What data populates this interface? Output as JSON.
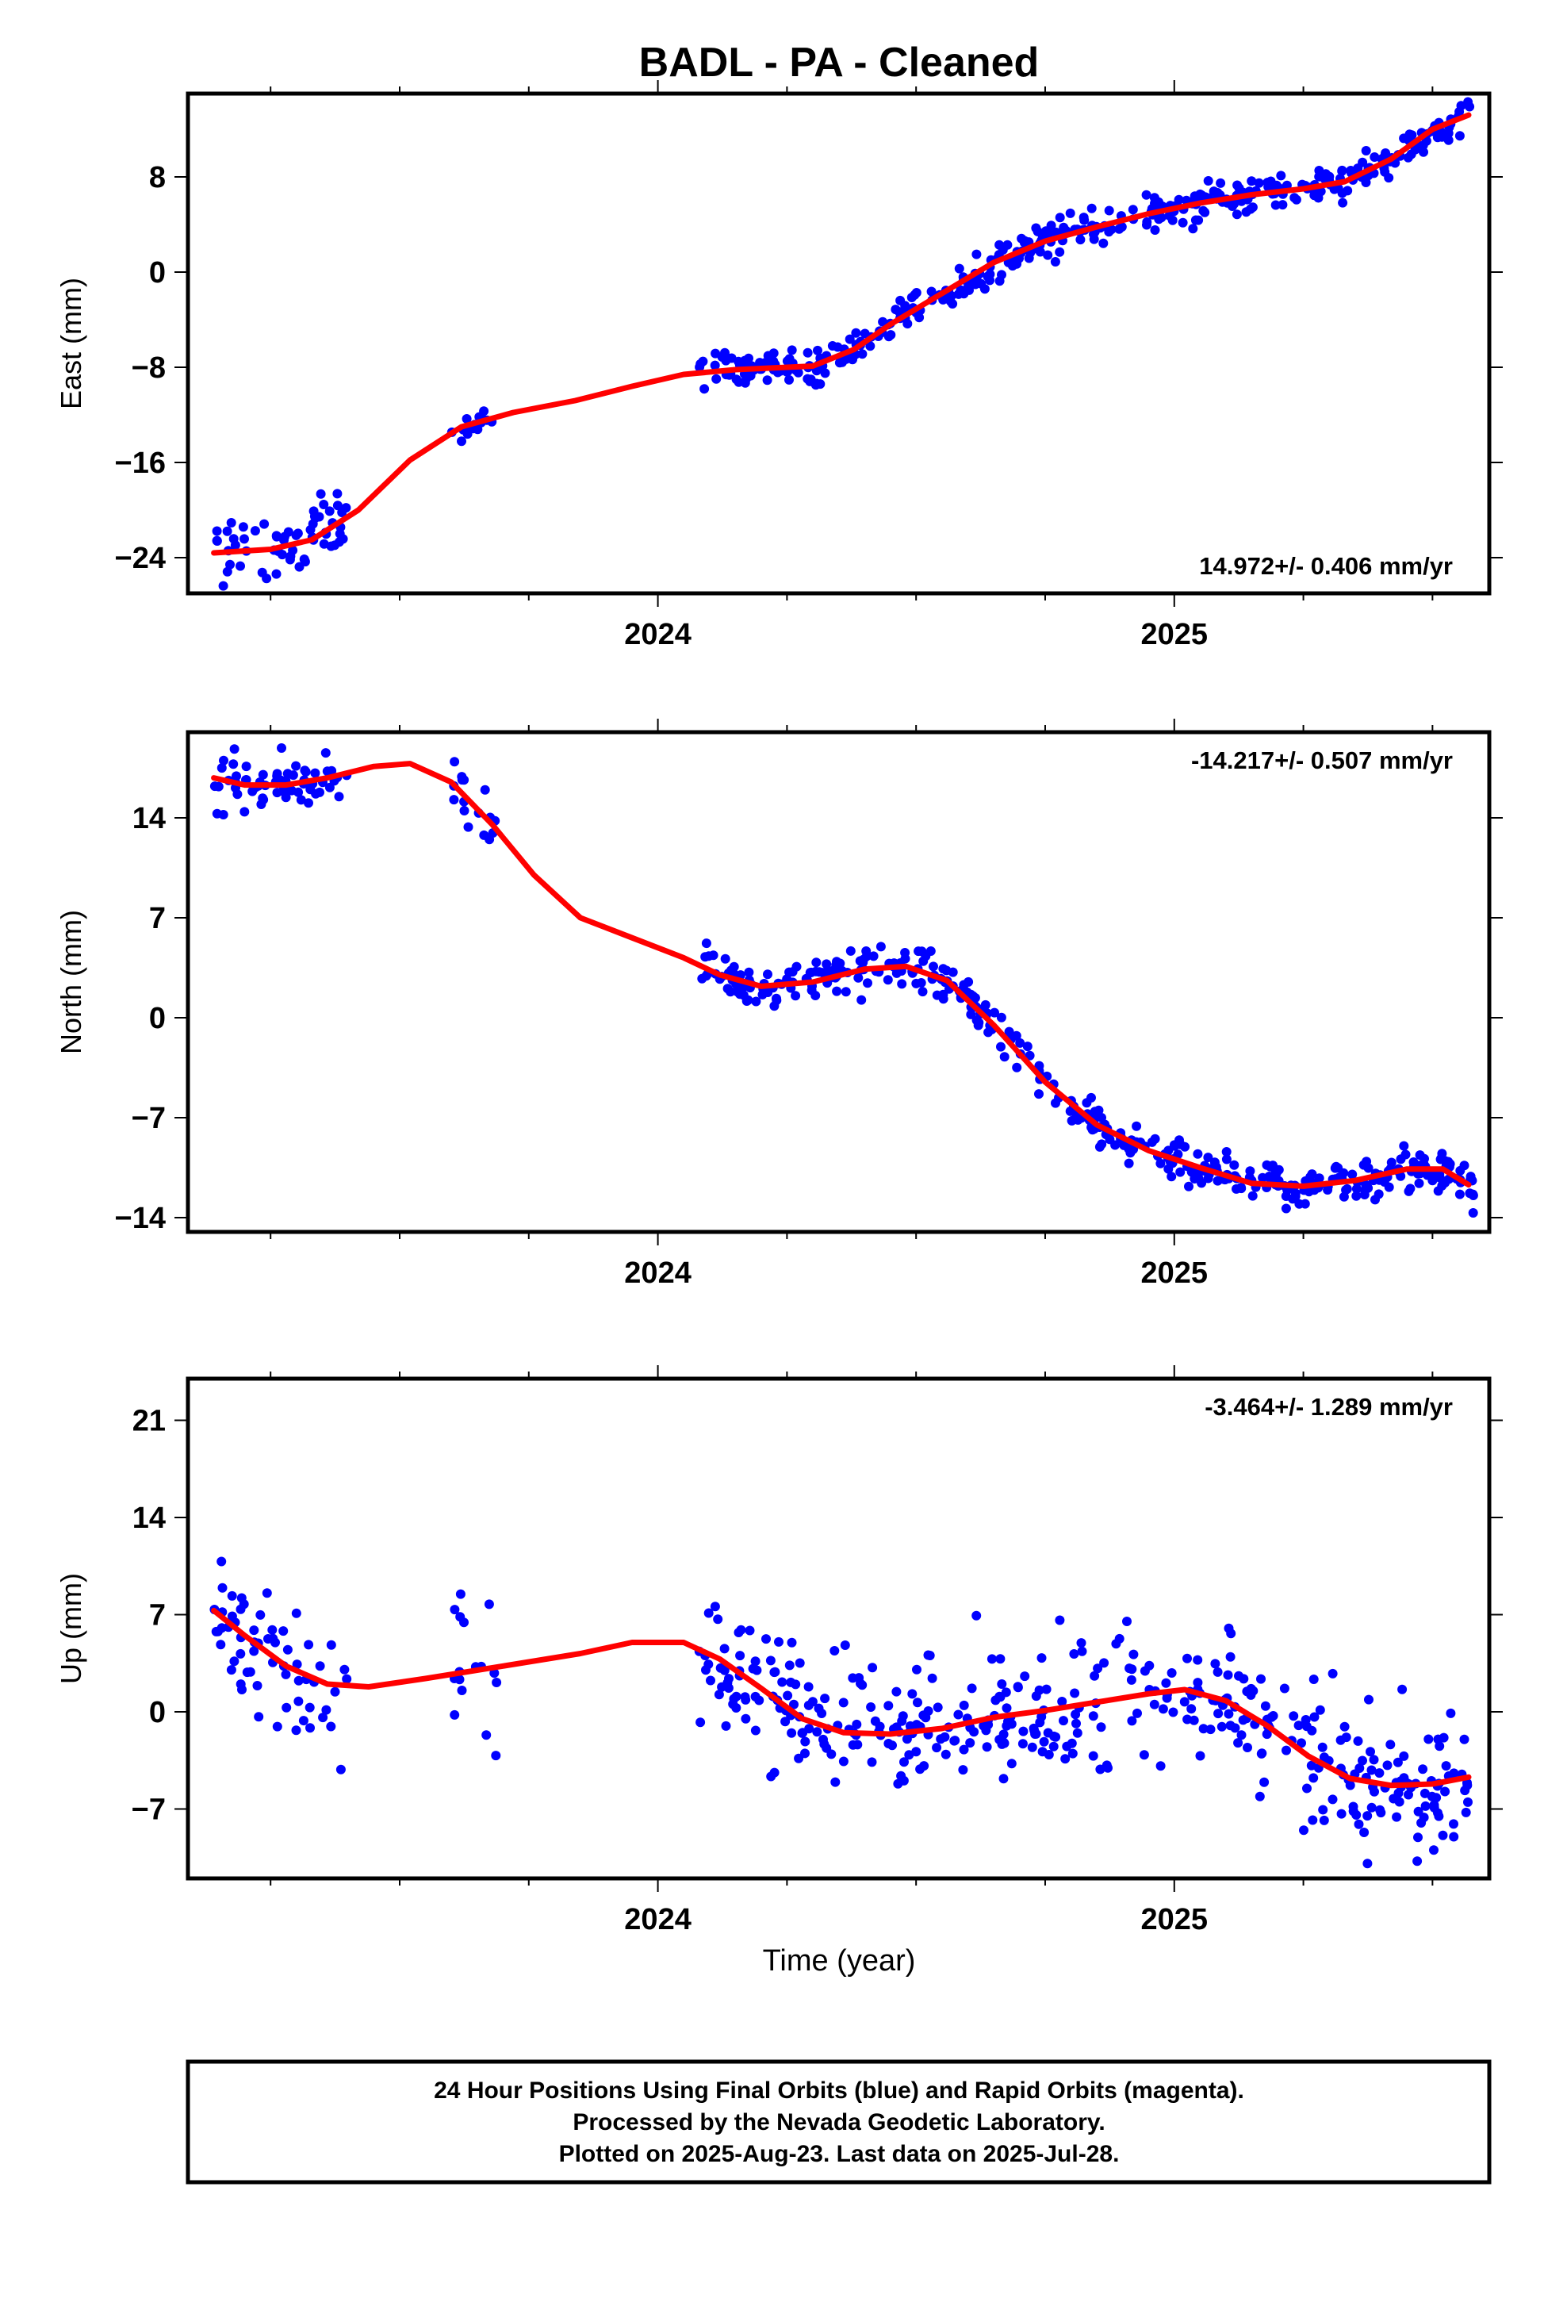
{
  "title": "BADL  - PA - Cleaned",
  "xlabel": "Time (year)",
  "footer": [
    "24 Hour Positions Using Final Orbits (blue) and Rapid Orbits (magenta).",
    "Processed by the Nevada Geodetic Laboratory.",
    "Plotted on 2025-Aug-23. Last data on 2025-Jul-28."
  ],
  "colors": {
    "points": "#0000ff",
    "fit": "#ff0000",
    "frame": "#000000"
  },
  "chart_data": [
    {
      "type": "scatter",
      "ylabel": "East (mm)",
      "rate": "14.972+/- 0.406 mm/yr",
      "xlim": [
        2023.09,
        2025.61
      ],
      "ylim": [
        -27,
        15
      ],
      "yticks": [
        -24,
        -16,
        -8,
        0,
        8
      ],
      "yticklabels": [
        "−24",
        "−16",
        "−8",
        "0",
        "8"
      ],
      "xticks": [
        2024,
        2025
      ],
      "xticklabels": [
        "2024",
        "2025"
      ],
      "grid": false,
      "fit": [
        [
          2023.14,
          -23.6
        ],
        [
          2023.25,
          -23.3
        ],
        [
          2023.33,
          -22.5
        ],
        [
          2023.42,
          -20
        ],
        [
          2023.52,
          -15.8
        ],
        [
          2023.62,
          -13
        ],
        [
          2023.72,
          -11.8
        ],
        [
          2023.84,
          -10.8
        ],
        [
          2023.95,
          -9.6
        ],
        [
          2024.05,
          -8.6
        ],
        [
          2024.15,
          -8.2
        ],
        [
          2024.3,
          -7.9
        ],
        [
          2024.38,
          -6.5
        ],
        [
          2024.45,
          -4.4
        ],
        [
          2024.55,
          -1.8
        ],
        [
          2024.65,
          0.8
        ],
        [
          2024.75,
          2.6
        ],
        [
          2024.85,
          3.8
        ],
        [
          2024.95,
          4.9
        ],
        [
          2025.05,
          5.8
        ],
        [
          2025.15,
          6.5
        ],
        [
          2025.25,
          7.0
        ],
        [
          2025.33,
          7.6
        ],
        [
          2025.42,
          9.5
        ],
        [
          2025.5,
          12
        ],
        [
          2025.57,
          13.2
        ]
      ],
      "segments": [
        {
          "start": 2023.14,
          "end": 2023.4,
          "scatter": 1.7,
          "count": 62
        },
        {
          "start": 2023.6,
          "end": 2023.69,
          "scatter": 1.1,
          "count": 16
        },
        {
          "start": 2024.08,
          "end": 2025.58,
          "scatter": 1.1,
          "count": 420
        }
      ]
    },
    {
      "type": "scatter",
      "ylabel": "North (mm)",
      "rate": "-14.217+/- 0.507 mm/yr",
      "xlim": [
        2023.09,
        2025.61
      ],
      "ylim": [
        -15,
        20
      ],
      "yticks": [
        -14,
        -7,
        0,
        7,
        14
      ],
      "yticklabels": [
        "−14",
        "−7",
        "0",
        "7",
        "14"
      ],
      "xticks": [
        2024,
        2025
      ],
      "xticklabels": [
        "2024",
        "2025"
      ],
      "grid": false,
      "fit": [
        [
          2023.14,
          16.8
        ],
        [
          2023.2,
          16.3
        ],
        [
          2023.28,
          16.3
        ],
        [
          2023.36,
          16.8
        ],
        [
          2023.45,
          17.6
        ],
        [
          2023.52,
          17.8
        ],
        [
          2023.6,
          16.5
        ],
        [
          2023.68,
          13.5
        ],
        [
          2023.76,
          10
        ],
        [
          2023.85,
          7
        ],
        [
          2023.95,
          5.6
        ],
        [
          2024.05,
          4.2
        ],
        [
          2024.12,
          3
        ],
        [
          2024.2,
          2.2
        ],
        [
          2024.3,
          2.5
        ],
        [
          2024.4,
          3.4
        ],
        [
          2024.48,
          3.6
        ],
        [
          2024.56,
          2.6
        ],
        [
          2024.65,
          -0.5
        ],
        [
          2024.75,
          -4.5
        ],
        [
          2024.85,
          -7.5
        ],
        [
          2024.95,
          -9.3
        ],
        [
          2025.05,
          -10.5
        ],
        [
          2025.15,
          -11.6
        ],
        [
          2025.25,
          -11.8
        ],
        [
          2025.35,
          -11.4
        ],
        [
          2025.45,
          -10.6
        ],
        [
          2025.52,
          -10.6
        ],
        [
          2025.57,
          -11.7
        ]
      ],
      "segments": [
        {
          "start": 2023.14,
          "end": 2023.4,
          "scatter": 1.3,
          "count": 62
        },
        {
          "start": 2023.6,
          "end": 2023.69,
          "scatter": 1.4,
          "count": 16
        },
        {
          "start": 2024.08,
          "end": 2025.58,
          "scatter": 1.1,
          "count": 420
        }
      ]
    },
    {
      "type": "scatter",
      "ylabel": "Up (mm)",
      "rate": "-3.464+/- 1.289 mm/yr",
      "xlim": [
        2023.09,
        2025.61
      ],
      "ylim": [
        -12,
        24
      ],
      "yticks": [
        -7,
        0,
        7,
        14,
        21
      ],
      "yticklabels": [
        "−7",
        "0",
        "7",
        "14",
        "21"
      ],
      "xticks": [
        2024,
        2025
      ],
      "xticklabels": [
        "2024",
        "2025"
      ],
      "grid": false,
      "fit": [
        [
          2023.14,
          7.3
        ],
        [
          2023.2,
          5.5
        ],
        [
          2023.28,
          3.3
        ],
        [
          2023.36,
          2
        ],
        [
          2023.44,
          1.8
        ],
        [
          2023.55,
          2.4
        ],
        [
          2023.7,
          3.3
        ],
        [
          2023.85,
          4.2
        ],
        [
          2023.95,
          5
        ],
        [
          2024.05,
          5
        ],
        [
          2024.12,
          3.8
        ],
        [
          2024.2,
          1.7
        ],
        [
          2024.28,
          -0.5
        ],
        [
          2024.36,
          -1.5
        ],
        [
          2024.45,
          -1.6
        ],
        [
          2024.55,
          -1.2
        ],
        [
          2024.65,
          -0.4
        ],
        [
          2024.75,
          0.1
        ],
        [
          2024.85,
          0.7
        ],
        [
          2024.95,
          1.3
        ],
        [
          2025.02,
          1.6
        ],
        [
          2025.1,
          0.8
        ],
        [
          2025.18,
          -1
        ],
        [
          2025.26,
          -3.2
        ],
        [
          2025.34,
          -4.8
        ],
        [
          2025.42,
          -5.3
        ],
        [
          2025.5,
          -5.2
        ],
        [
          2025.57,
          -4.7
        ]
      ],
      "segments": [
        {
          "start": 2023.14,
          "end": 2023.4,
          "scatter": 3.6,
          "count": 62
        },
        {
          "start": 2023.6,
          "end": 2023.69,
          "scatter": 4.2,
          "count": 16
        },
        {
          "start": 2024.08,
          "end": 2025.58,
          "scatter": 3.6,
          "count": 420
        }
      ]
    }
  ]
}
